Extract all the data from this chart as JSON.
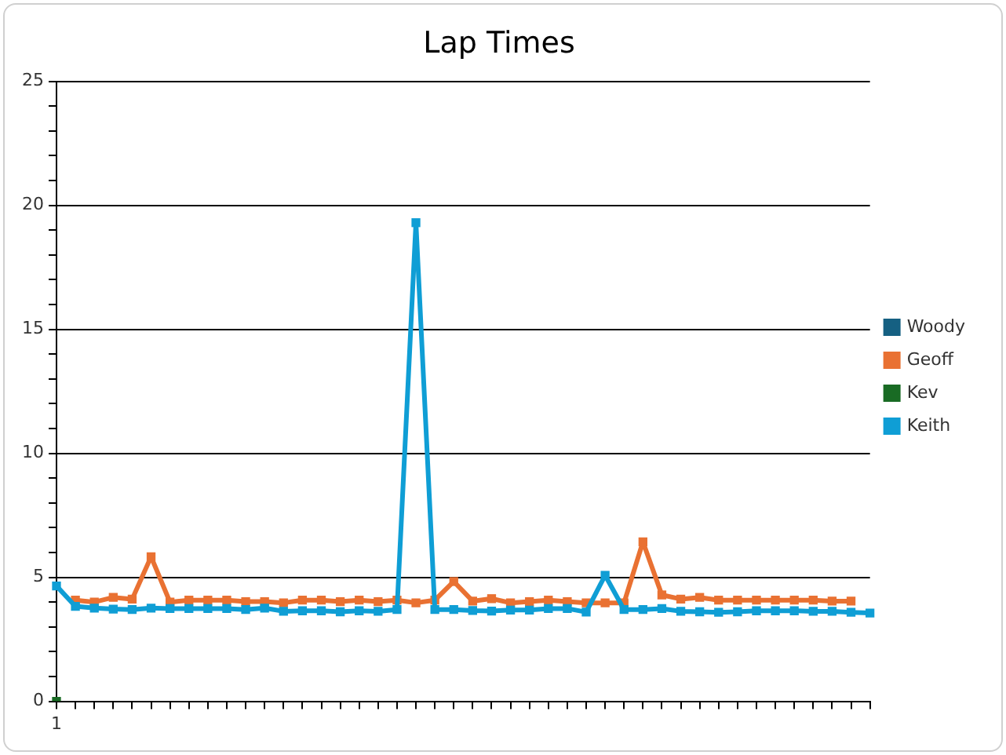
{
  "chart_data": {
    "type": "line",
    "title": "Lap Times",
    "categories": [
      "1",
      null,
      null,
      null,
      null,
      null,
      null,
      null,
      null,
      null,
      null,
      null,
      null,
      null,
      null,
      null,
      null,
      null,
      null,
      null,
      null,
      null,
      null,
      null,
      null,
      null,
      null,
      null,
      null,
      null,
      null,
      null,
      null,
      null,
      null,
      null,
      null,
      null,
      null,
      null,
      null,
      null,
      null,
      null
    ],
    "series": [
      {
        "name": "Woody",
        "color": "#156082",
        "values": [
          null,
          null,
          null,
          null,
          null,
          null,
          null,
          null,
          null,
          null,
          null,
          null,
          null,
          null,
          null,
          null,
          null,
          null,
          null,
          null,
          null,
          null,
          null,
          null,
          null,
          null,
          null,
          null,
          null,
          null,
          null,
          null,
          null,
          null,
          null,
          null,
          null,
          null,
          null,
          null,
          null,
          null,
          null,
          null
        ]
      },
      {
        "name": "Geoff",
        "color": "#e97132",
        "values": [
          null,
          4.08,
          4.0,
          4.19,
          4.12,
          5.83,
          4.0,
          4.08,
          4.08,
          4.08,
          4.02,
          4.02,
          3.97,
          4.08,
          4.08,
          4.02,
          4.08,
          4.02,
          4.08,
          3.97,
          4.08,
          4.83,
          4.04,
          4.14,
          3.97,
          4.02,
          4.08,
          4.02,
          3.97,
          3.97,
          3.97,
          6.43,
          4.29,
          4.12,
          4.19,
          4.08,
          4.08,
          4.08,
          4.08,
          4.08,
          4.08,
          4.04,
          4.04,
          null
        ]
      },
      {
        "name": "Kev",
        "color": "#196b24",
        "values": [
          0,
          null,
          null,
          null,
          null,
          null,
          null,
          null,
          null,
          null,
          null,
          null,
          null,
          null,
          null,
          null,
          null,
          null,
          null,
          null,
          null,
          null,
          null,
          null,
          null,
          null,
          null,
          null,
          null,
          null,
          null,
          null,
          null,
          null,
          null,
          null,
          null,
          null,
          null,
          null,
          null,
          null,
          null,
          null
        ]
      },
      {
        "name": "Keith",
        "color": "#0f9ed5",
        "values": [
          4.65,
          3.83,
          3.76,
          3.72,
          3.7,
          3.76,
          3.74,
          3.74,
          3.74,
          3.74,
          3.7,
          3.76,
          3.63,
          3.65,
          3.65,
          3.61,
          3.65,
          3.63,
          3.7,
          19.3,
          3.7,
          3.7,
          3.66,
          3.64,
          3.68,
          3.68,
          3.74,
          3.74,
          3.6,
          5.08,
          3.7,
          3.7,
          3.74,
          3.63,
          3.61,
          3.59,
          3.61,
          3.65,
          3.65,
          3.65,
          3.63,
          3.63,
          3.59,
          3.56
        ]
      }
    ],
    "ylim": [
      0,
      25
    ],
    "yticks": [
      0,
      {
        "value": 1,
        "label": null
      },
      {
        "value": 2,
        "label": null
      },
      {
        "value": 3,
        "label": null
      },
      {
        "value": 4,
        "label": null
      },
      5,
      {
        "value": 6,
        "label": null
      },
      {
        "value": 7,
        "label": null
      },
      {
        "value": 8,
        "label": null
      },
      {
        "value": 9,
        "label": null
      },
      10,
      {
        "value": 11,
        "label": null
      },
      {
        "value": 12,
        "label": null
      },
      {
        "value": 13,
        "label": null
      },
      {
        "value": 14,
        "label": null
      },
      15,
      {
        "value": 16,
        "label": null
      },
      {
        "value": 17,
        "label": null
      },
      {
        "value": 18,
        "label": null
      },
      {
        "value": 19,
        "label": null
      },
      20,
      {
        "value": 21,
        "label": null
      },
      {
        "value": 22,
        "label": null
      },
      {
        "value": 23,
        "label": null
      },
      {
        "value": 24,
        "label": null
      },
      25
    ],
    "grid": "y",
    "legend": "right",
    "marker": "square",
    "line_style": "solid"
  }
}
